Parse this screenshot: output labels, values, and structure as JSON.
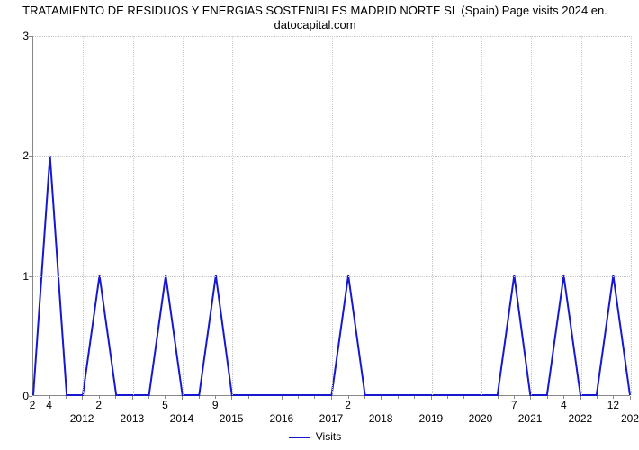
{
  "chart": {
    "type": "line",
    "title_line1": "TRATAMIENTO DE RESIDUOS Y ENERGIAS SOSTENIBLES MADRID NORTE SL (Spain) Page visits 2024 en.",
    "title_line2": "datocapital.com",
    "title_fontsize": 13,
    "background_color": "#ffffff",
    "grid_color": "#c8c8c8",
    "axis_color": "#888888",
    "label_fontsize": 12,
    "series": {
      "name": "Visits",
      "color": "#1618ce",
      "line_width": 2,
      "points": [
        {
          "x": 0.0,
          "y": 0,
          "label": "2"
        },
        {
          "x": 0.028,
          "y": 2,
          "label": "4"
        },
        {
          "x": 0.056,
          "y": 0
        },
        {
          "x": 0.083,
          "y": 0
        },
        {
          "x": 0.111,
          "y": 1,
          "label": "2"
        },
        {
          "x": 0.139,
          "y": 0
        },
        {
          "x": 0.167,
          "y": 0
        },
        {
          "x": 0.194,
          "y": 0
        },
        {
          "x": 0.222,
          "y": 1,
          "label": "5"
        },
        {
          "x": 0.25,
          "y": 0
        },
        {
          "x": 0.278,
          "y": 0
        },
        {
          "x": 0.306,
          "y": 1,
          "label": "9"
        },
        {
          "x": 0.333,
          "y": 0
        },
        {
          "x": 0.361,
          "y": 0
        },
        {
          "x": 0.389,
          "y": 0
        },
        {
          "x": 0.417,
          "y": 0
        },
        {
          "x": 0.444,
          "y": 0
        },
        {
          "x": 0.472,
          "y": 0
        },
        {
          "x": 0.5,
          "y": 0
        },
        {
          "x": 0.528,
          "y": 1,
          "label": "2"
        },
        {
          "x": 0.556,
          "y": 0
        },
        {
          "x": 0.583,
          "y": 0
        },
        {
          "x": 0.611,
          "y": 0
        },
        {
          "x": 0.639,
          "y": 0
        },
        {
          "x": 0.667,
          "y": 0
        },
        {
          "x": 0.694,
          "y": 0
        },
        {
          "x": 0.722,
          "y": 0
        },
        {
          "x": 0.75,
          "y": 0
        },
        {
          "x": 0.778,
          "y": 0
        },
        {
          "x": 0.806,
          "y": 1,
          "label": "7"
        },
        {
          "x": 0.833,
          "y": 0
        },
        {
          "x": 0.861,
          "y": 0
        },
        {
          "x": 0.889,
          "y": 1,
          "label": "4"
        },
        {
          "x": 0.917,
          "y": 0
        },
        {
          "x": 0.944,
          "y": 0
        },
        {
          "x": 0.972,
          "y": 1,
          "label": "12"
        },
        {
          "x": 1.0,
          "y": 0
        }
      ]
    },
    "y_axis": {
      "min": 0,
      "max": 3,
      "ticks": [
        0,
        1,
        2,
        3
      ]
    },
    "x_axis": {
      "ticks": [
        {
          "pos": 0.083,
          "label": "2012"
        },
        {
          "pos": 0.167,
          "label": "2013"
        },
        {
          "pos": 0.25,
          "label": "2014"
        },
        {
          "pos": 0.333,
          "label": "2015"
        },
        {
          "pos": 0.417,
          "label": "2016"
        },
        {
          "pos": 0.5,
          "label": "2017"
        },
        {
          "pos": 0.583,
          "label": "2018"
        },
        {
          "pos": 0.667,
          "label": "2019"
        },
        {
          "pos": 0.75,
          "label": "2020"
        },
        {
          "pos": 0.833,
          "label": "2021"
        },
        {
          "pos": 0.917,
          "label": "2022"
        },
        {
          "pos": 1.0,
          "label": "202"
        }
      ],
      "minor_ticks": [
        0.028,
        0.056,
        0.111,
        0.139,
        0.194,
        0.222,
        0.278,
        0.306,
        0.361,
        0.389,
        0.444,
        0.472,
        0.528,
        0.556,
        0.611,
        0.639,
        0.694,
        0.722,
        0.778,
        0.806,
        0.861,
        0.889,
        0.944,
        0.972
      ]
    },
    "legend": {
      "label": "Visits"
    }
  }
}
